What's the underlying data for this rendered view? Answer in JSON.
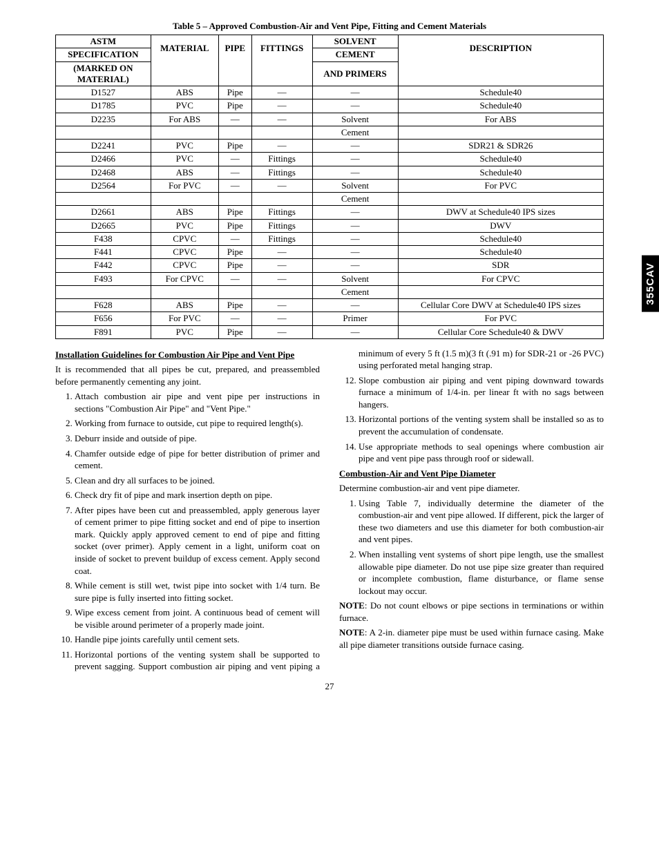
{
  "sideTab": "355CAV",
  "pageNumber": "27",
  "table": {
    "caption": "Table 5 – Approved Combustion-Air and Vent Pipe, Fitting and Cement Materials",
    "header": {
      "c1a": "ASTM",
      "c1b": "SPECIFICATION",
      "c1c": "(MARKED ON",
      "c1d": "MATERIAL)",
      "c2": "MATERIAL",
      "c3": "PIPE",
      "c4": "FITTINGS",
      "c5a": "SOLVENT",
      "c5b": "CEMENT",
      "c5c": "AND PRIMERS",
      "c6": "DESCRIPTION"
    },
    "rows": [
      [
        "D1527",
        "ABS",
        "Pipe",
        "—",
        "—",
        "Schedule40"
      ],
      [
        "D1785",
        "PVC",
        "Pipe",
        "—",
        "—",
        "Schedule40"
      ],
      [
        "D2235",
        "For ABS",
        "—",
        "—",
        "Solvent",
        "For ABS"
      ],
      [
        "",
        "",
        "",
        "",
        "Cement",
        ""
      ],
      [
        "D2241",
        "PVC",
        "Pipe",
        "—",
        "—",
        "SDR21 & SDR26"
      ],
      [
        "D2466",
        "PVC",
        "—",
        "Fittings",
        "—",
        "Schedule40"
      ],
      [
        "D2468",
        "ABS",
        "—",
        "Fittings",
        "—",
        "Schedule40"
      ],
      [
        "D2564",
        "For PVC",
        "—",
        "—",
        "Solvent",
        "For PVC"
      ],
      [
        "",
        "",
        "",
        "",
        "Cement",
        ""
      ],
      [
        "D2661",
        "ABS",
        "Pipe",
        "Fittings",
        "—",
        "DWV at Schedule40 IPS sizes"
      ],
      [
        "D2665",
        "PVC",
        "Pipe",
        "Fittings",
        "—",
        "DWV"
      ],
      [
        "F438",
        "CPVC",
        "—",
        "Fittings",
        "—",
        "Schedule40"
      ],
      [
        "F441",
        "CPVC",
        "Pipe",
        "—",
        "—",
        "Schedule40"
      ],
      [
        "F442",
        "CPVC",
        "Pipe",
        "—",
        "—",
        "SDR"
      ],
      [
        "F493",
        "For CPVC",
        "—",
        "—",
        "Solvent",
        "For CPVC"
      ],
      [
        "",
        "",
        "",
        "",
        "Cement",
        ""
      ],
      [
        "F628",
        "ABS",
        "Pipe",
        "—",
        "—",
        "Cellular Core DWV at Schedule40 IPS sizes"
      ],
      [
        "F656",
        "For PVC",
        "—",
        "—",
        "Primer",
        "For PVC"
      ],
      [
        "F891",
        "PVC",
        "Pipe",
        "—",
        "—",
        "Cellular Core Schedule40 & DWV"
      ]
    ]
  },
  "sections": {
    "s1title": "Installation Guidelines for Combustion Air Pipe and Vent Pipe",
    "s1intro": "It is recommended that all pipes be cut, prepared, and preassembled before permanently cementing any joint.",
    "s1items": [
      "Attach combustion air pipe and vent pipe per instructions in sections \"Combustion Air Pipe\" and \"Vent Pipe.\"",
      "Working from furnace to outside, cut pipe to required length(s).",
      "Deburr inside and outside of pipe.",
      "Chamfer outside edge of pipe for better distribution of primer and cement.",
      "Clean and dry all surfaces to be joined.",
      "Check dry fit of pipe and mark insertion depth on pipe.",
      "After pipes have been cut and preassembled, apply generous layer of cement primer to pipe fitting socket and end of pipe to insertion mark. Quickly apply approved cement to end of pipe and fitting socket (over primer). Apply cement in a light, uniform coat on inside of socket to prevent buildup of excess cement. Apply second coat.",
      "While cement is still wet, twist pipe into socket with 1/4 turn. Be sure pipe is fully inserted into fitting socket.",
      "Wipe excess cement from joint. A continuous bead of cement will be visible around perimeter of a properly made joint.",
      "Handle pipe joints carefully until cement sets.",
      "Horizontal portions of the venting system shall be supported to prevent sagging. Support combustion air piping and vent piping a minimum of every 5 ft (1.5 m)(3 ft (.91 m) for SDR-21 or -26 PVC) using perforated metal hanging strap.",
      "Slope combustion air piping and vent piping downward towards furnace a minimum of 1/4-in. per linear ft with no sags between hangers.",
      "Horizontal portions of the venting system shall be installed so as to prevent the accumulation of condensate.",
      "Use appropriate methods to seal openings where combustion air pipe and vent pipe pass through roof or sidewall."
    ],
    "s2title": "Combustion-Air and Vent Pipe Diameter",
    "s2intro": "Determine combustion-air and vent pipe diameter.",
    "s2items": [
      "Using Table 7, individually determine the diameter of the combustion-air and vent pipe allowed. If different, pick the larger of these two diameters and use this diameter for both combustion-air and vent pipes.",
      "When installing vent systems of short pipe length, use the smallest allowable pipe diameter. Do not use pipe size greater than required or incomplete combustion, flame disturbance, or flame sense lockout may occur."
    ],
    "note1label": "NOTE",
    "note1": ":  Do not count elbows or pipe sections in terminations or within furnace.",
    "note2label": "NOTE",
    "note2": ":  A 2-in. diameter pipe must be used within furnace casing. Make all pipe diameter transitions outside furnace casing."
  }
}
